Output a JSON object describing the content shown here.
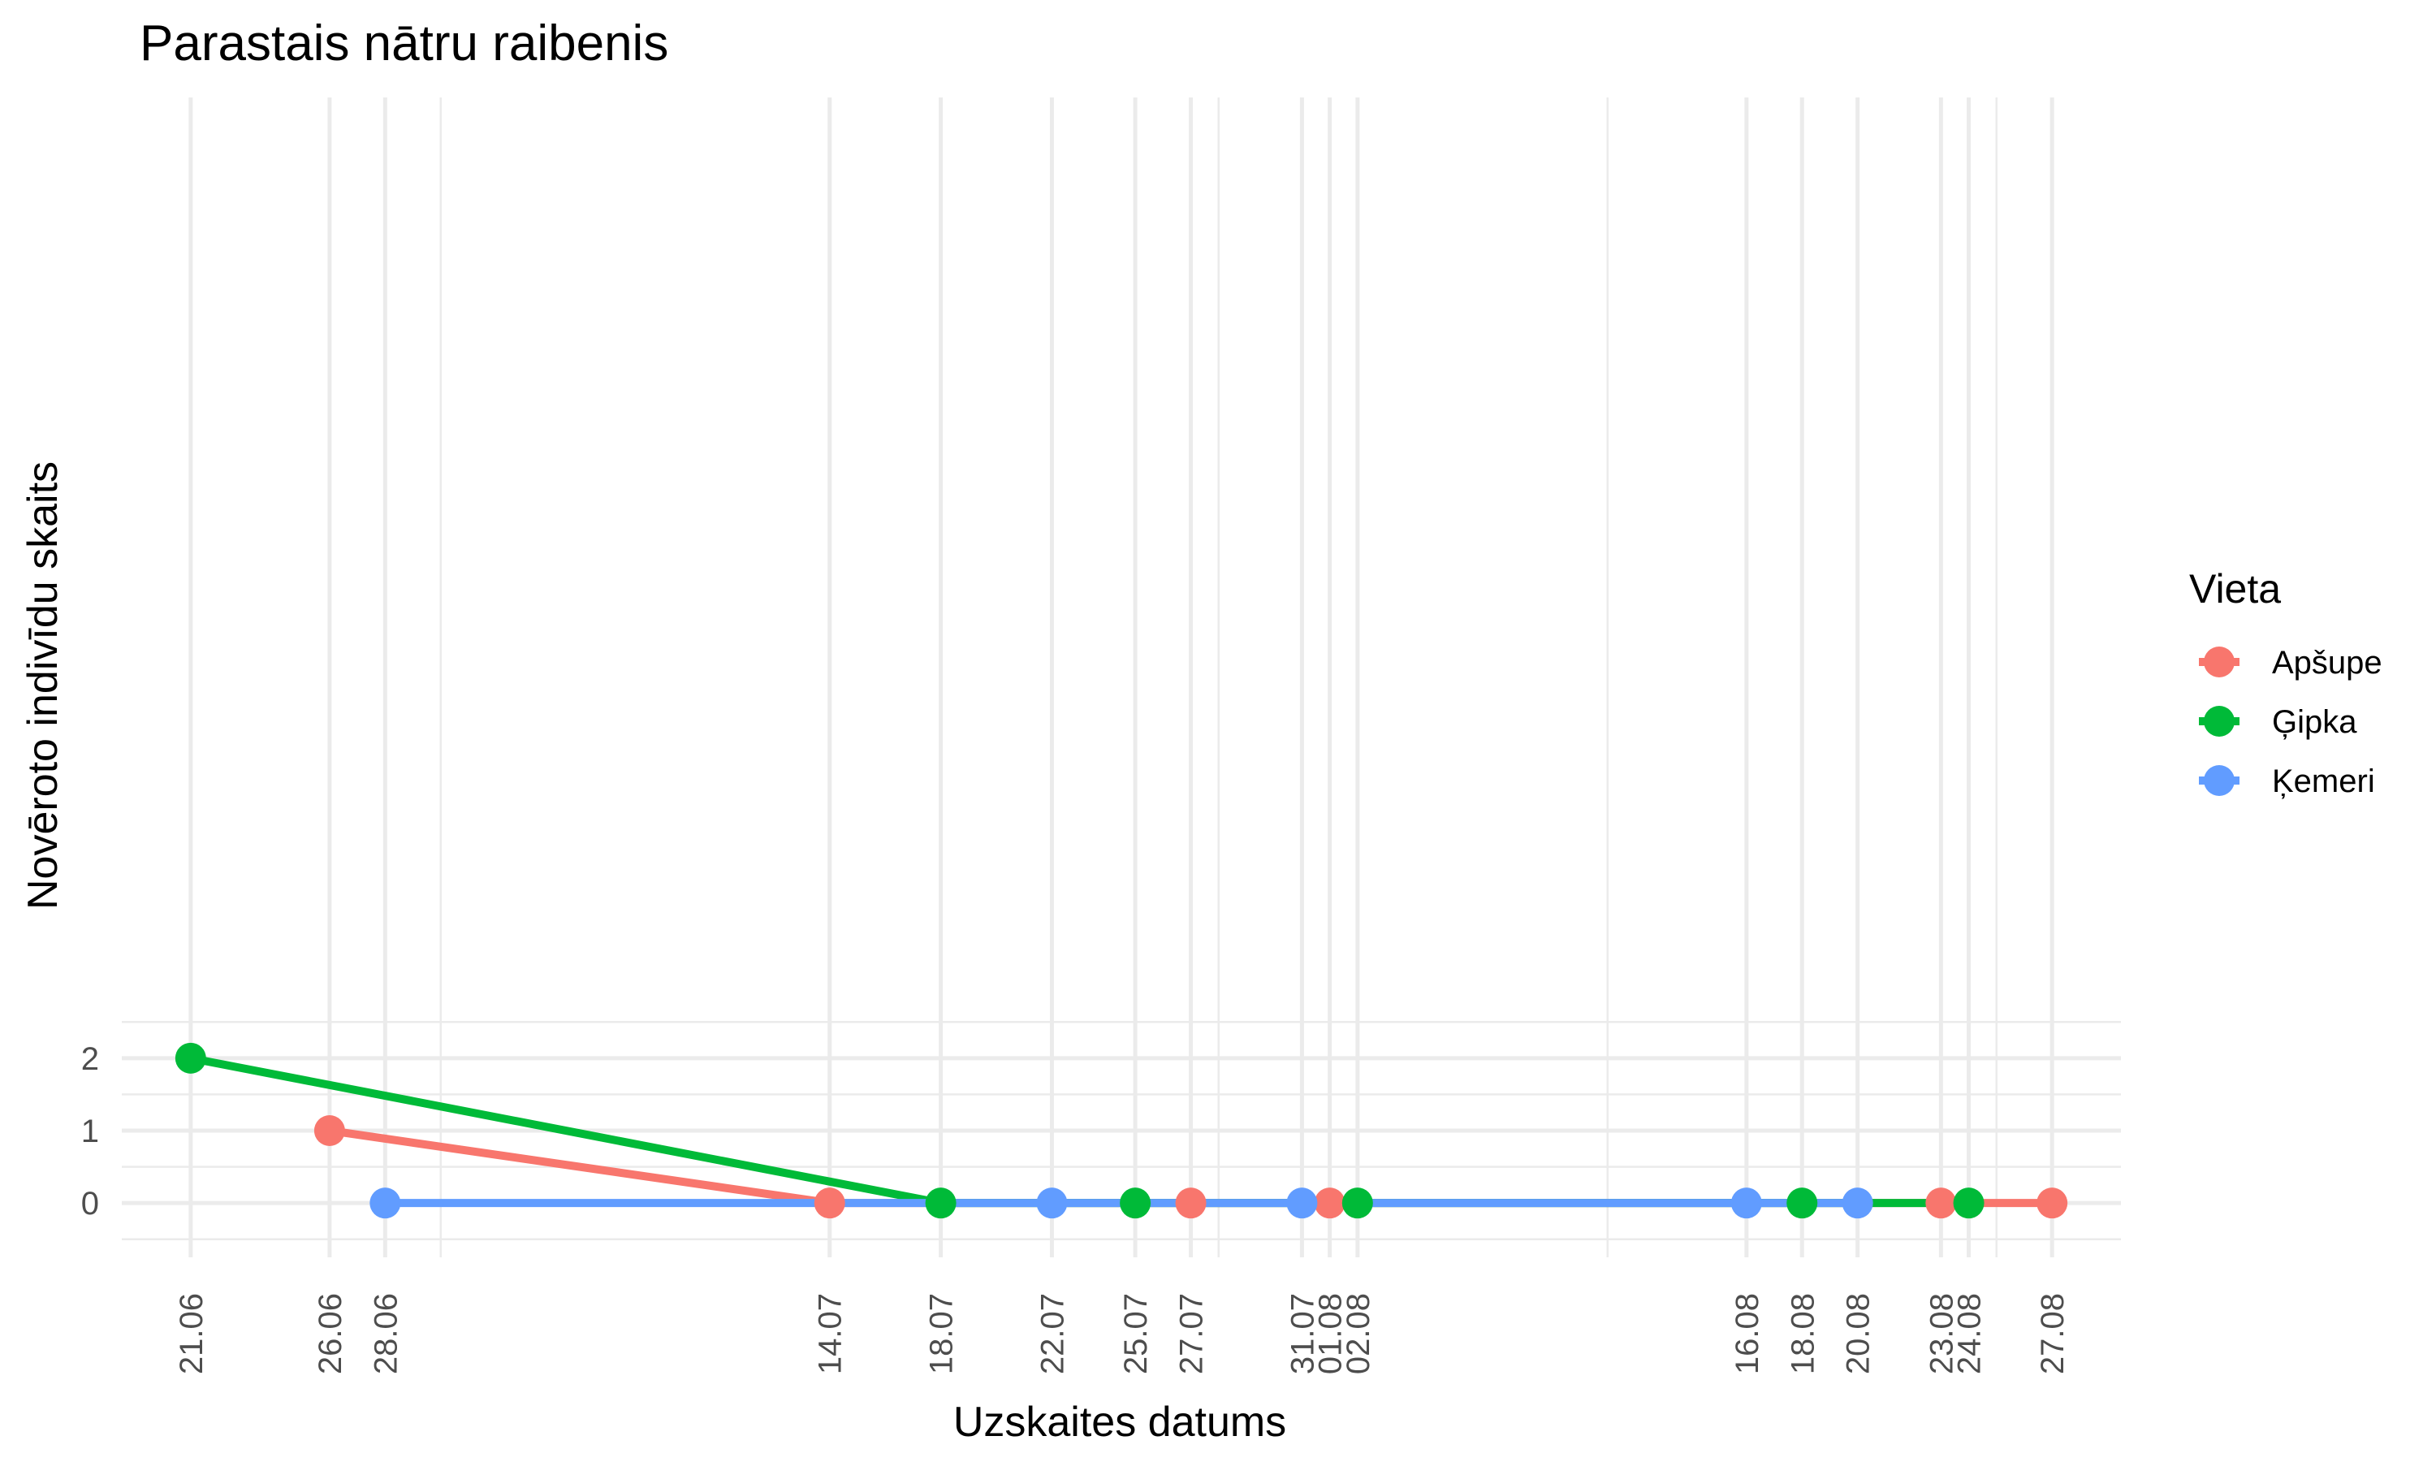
{
  "chart_data": {
    "type": "line",
    "title": "Parastais nātru raibenis",
    "xlabel": "Uzskaites datums",
    "ylabel": "Novēroto indivīdu skaits",
    "x_tick_labels": [
      "21.06",
      "26.06",
      "28.06",
      "14.07",
      "18.07",
      "22.07",
      "25.07",
      "27.07",
      "31.07",
      "01.08",
      "02.08",
      "16.08",
      "18.08",
      "20.08",
      "23.08",
      "24.08",
      "27.08"
    ],
    "y_tick_labels": [
      "0",
      "1",
      "2"
    ],
    "ylim": [
      -0.75,
      2.75
    ],
    "grid": true,
    "legend": {
      "title": "Vieta",
      "position": "right"
    },
    "series": [
      {
        "name": "Apšupe",
        "color": "#F8766D",
        "x": [
          "26.06",
          "14.07",
          "27.07",
          "01.08",
          "23.08",
          "27.08"
        ],
        "y": [
          1,
          0,
          0,
          0,
          0,
          0
        ]
      },
      {
        "name": "Ģipka",
        "color": "#00BA38",
        "x": [
          "21.06",
          "18.07",
          "25.07",
          "02.08",
          "18.08",
          "24.08"
        ],
        "y": [
          2,
          0,
          0,
          0,
          0,
          0
        ]
      },
      {
        "name": "Ķemeri",
        "color": "#619CFF",
        "x": [
          "28.06",
          "22.07",
          "31.07",
          "16.08",
          "20.08"
        ],
        "y": [
          0,
          0,
          0,
          0,
          0
        ]
      }
    ]
  }
}
